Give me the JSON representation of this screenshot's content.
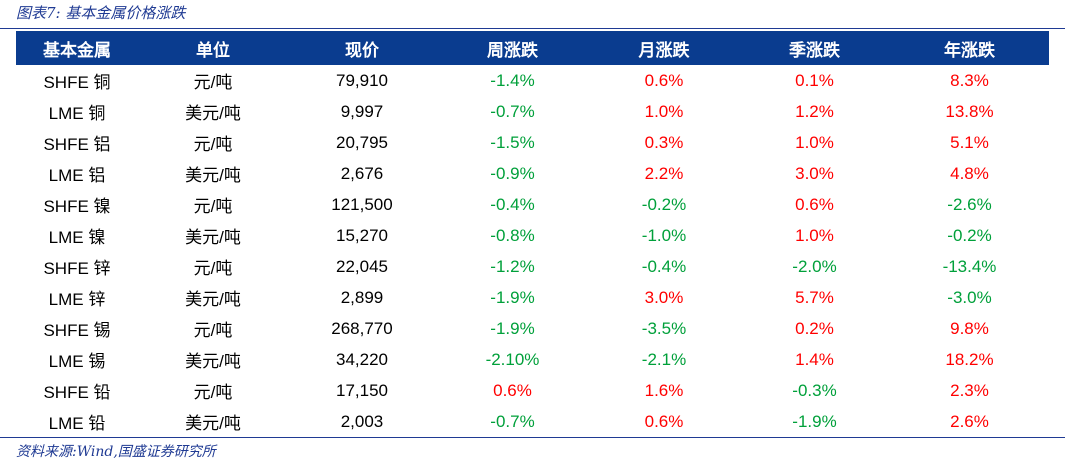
{
  "caption": "图表7:  基本金属价格涨跌",
  "source": "资料来源:Wind,国盛证券研究所",
  "colors": {
    "header_bg": "#0a3c8f",
    "up": "#ff0000",
    "down": "#00a03a",
    "caption": "#1f3a93"
  },
  "table": {
    "headers": [
      "基本金属",
      "单位",
      "现价",
      "周涨跌",
      "月涨跌",
      "季涨跌",
      "年涨跌"
    ],
    "rows": [
      [
        "SHFE 铜",
        "元/吨",
        "79,910",
        "-1.4%",
        "0.6%",
        "0.1%",
        "8.3%"
      ],
      [
        "LME 铜",
        "美元/吨",
        "9,997",
        "-0.7%",
        "1.0%",
        "1.2%",
        "13.8%"
      ],
      [
        "SHFE 铝",
        "元/吨",
        "20,795",
        "-1.5%",
        "0.3%",
        "1.0%",
        "5.1%"
      ],
      [
        "LME 铝",
        "美元/吨",
        "2,676",
        "-0.9%",
        "2.2%",
        "3.0%",
        "4.8%"
      ],
      [
        "SHFE 镍",
        "元/吨",
        "121,500",
        "-0.4%",
        "-0.2%",
        "0.6%",
        "-2.6%"
      ],
      [
        "LME 镍",
        "美元/吨",
        "15,270",
        "-0.8%",
        "-1.0%",
        "1.0%",
        "-0.2%"
      ],
      [
        "SHFE 锌",
        "元/吨",
        "22,045",
        "-1.2%",
        "-0.4%",
        "-2.0%",
        "-13.4%"
      ],
      [
        "LME 锌",
        "美元/吨",
        "2,899",
        "-1.9%",
        "3.0%",
        "5.7%",
        "-3.0%"
      ],
      [
        "SHFE 锡",
        "元/吨",
        "268,770",
        "-1.9%",
        "-3.5%",
        "0.2%",
        "9.8%"
      ],
      [
        "LME 锡",
        "美元/吨",
        "34,220",
        "-2.10%",
        "-2.1%",
        "1.4%",
        "18.2%"
      ],
      [
        "SHFE 铅",
        "元/吨",
        "17,150",
        "0.6%",
        "1.6%",
        "-0.3%",
        "2.3%"
      ],
      [
        "LME 铅",
        "美元/吨",
        "2,003",
        "-0.7%",
        "0.6%",
        "-1.9%",
        "2.6%"
      ]
    ]
  }
}
